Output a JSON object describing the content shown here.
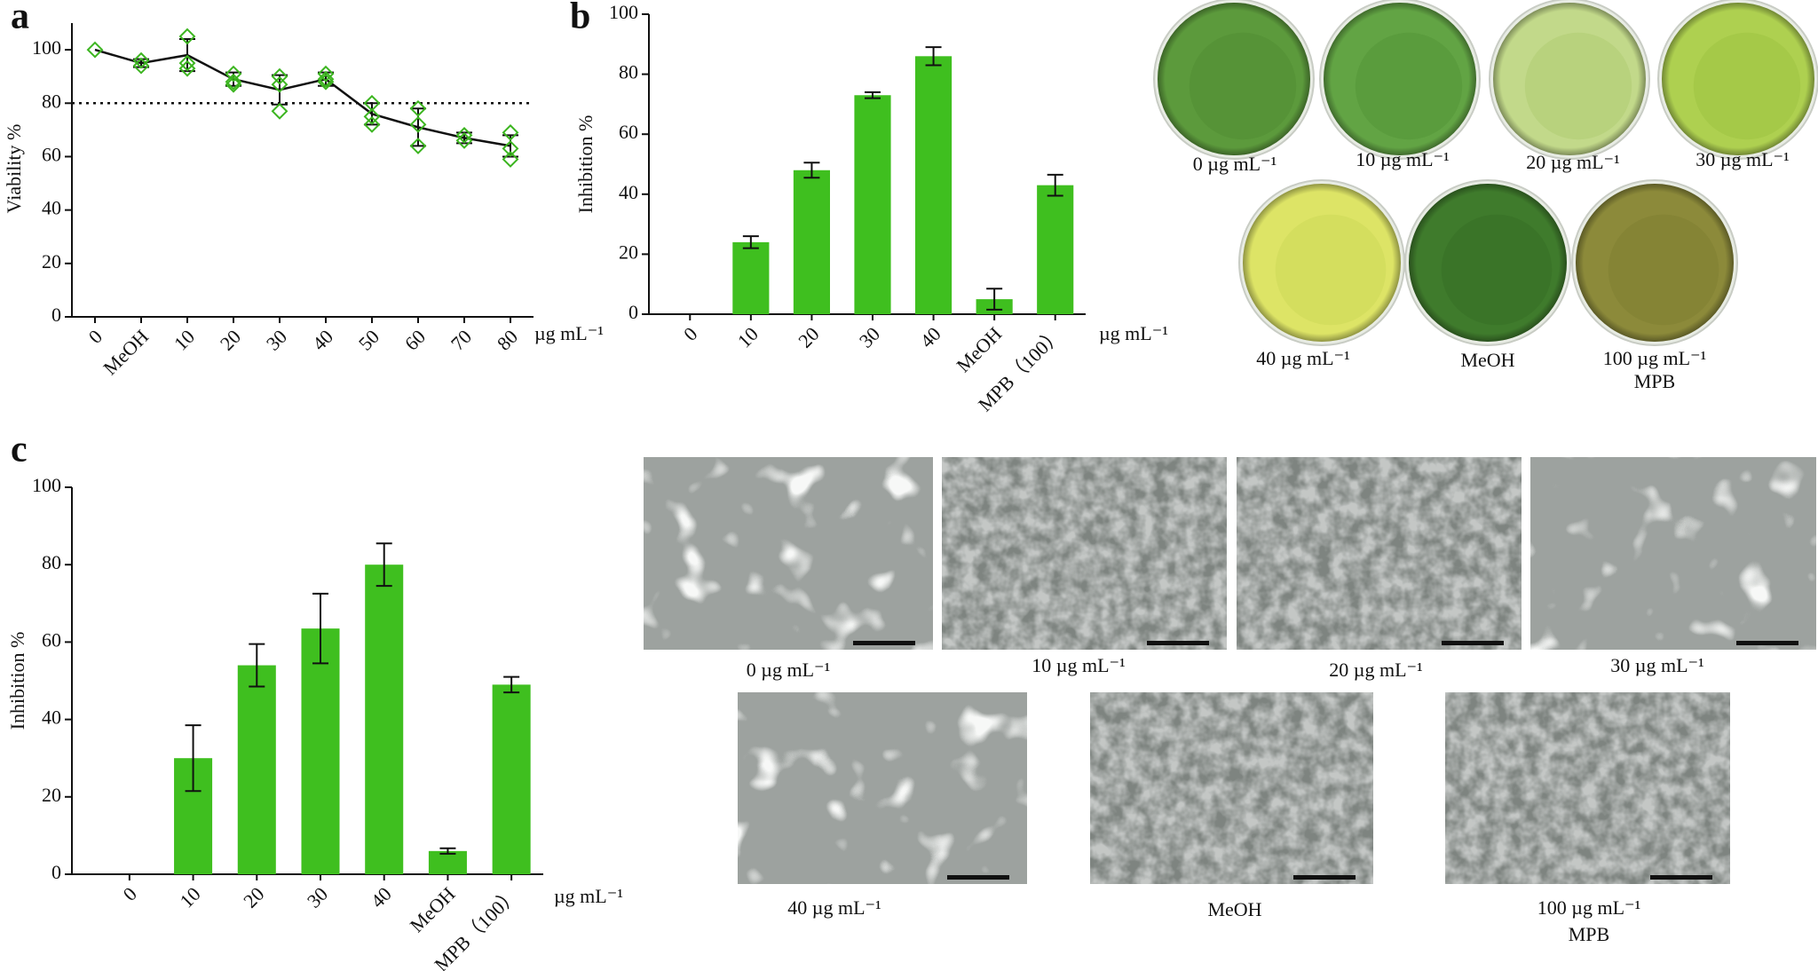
{
  "chart_data": [
    {
      "type": "line",
      "panel_label": "a",
      "y_label": "Viability %",
      "x_unit_label": "µg mL⁻¹",
      "categories": [
        "0",
        "MeOH",
        "10",
        "20",
        "30",
        "40",
        "50",
        "60",
        "70",
        "80"
      ],
      "series": [
        {
          "color": "#111111",
          "values": [
            100,
            95,
            98,
            89,
            85,
            89,
            76,
            71,
            67,
            64
          ],
          "errors": [
            0,
            1.5,
            6,
            2.5,
            5.5,
            2.5,
            4,
            7,
            2,
            4
          ]
        },
        {
          "color": "#3cb520",
          "marker": "diamond",
          "values": [
            100,
            96,
            105,
            91,
            90,
            91,
            80,
            78,
            68,
            69
          ]
        },
        {
          "color": "#3cb520",
          "marker": "diamond",
          "values": [
            null,
            94,
            95,
            88,
            87,
            89,
            75,
            72,
            66,
            63
          ]
        },
        {
          "color": "#3cb520",
          "marker": "diamond",
          "values": [
            null,
            null,
            93,
            87,
            77,
            88,
            72,
            64,
            null,
            59
          ]
        }
      ],
      "reference_line": 80,
      "ylim": [
        0,
        110
      ],
      "yticks": [
        0,
        20,
        40,
        60,
        80,
        100
      ]
    },
    {
      "type": "bar",
      "panel_label": "b",
      "y_label": "Inhibition %",
      "x_unit_label": "µg mL⁻¹",
      "categories": [
        "0",
        "10",
        "20",
        "30",
        "40",
        "MeOH",
        "MPB（100）"
      ],
      "values": [
        0,
        24,
        48,
        73,
        86,
        5,
        43
      ],
      "errors": [
        0,
        2,
        2.5,
        1,
        3,
        3.5,
        3.5
      ],
      "color": "#3fbf1f",
      "ylim": [
        0,
        100
      ],
      "yticks": [
        0,
        20,
        40,
        60,
        80,
        100
      ]
    },
    {
      "type": "bar",
      "panel_label": "c",
      "y_label": "Inhibition %",
      "x_unit_label": "µg mL⁻¹",
      "categories": [
        "0",
        "10",
        "20",
        "30",
        "40",
        "MeOH",
        "MPB（100）"
      ],
      "values": [
        0,
        30,
        54,
        63.5,
        80,
        6,
        49
      ],
      "errors": [
        0,
        8.5,
        5.5,
        9,
        5.5,
        0.7,
        2
      ],
      "color": "#3fbf1f",
      "ylim": [
        0,
        100
      ],
      "yticks": [
        0,
        20,
        40,
        60,
        80,
        100
      ]
    }
  ],
  "plate_photos": {
    "captions": [
      "0 µg mL⁻¹",
      "10 µg mL⁻¹",
      "20 µg mL⁻¹",
      "30 µg mL⁻¹",
      "40 µg mL⁻¹",
      "MeOH",
      "100 µg mL⁻¹"
    ],
    "last_caption_line2": "MPB"
  },
  "sem_images": {
    "captions": [
      "0 µg mL⁻¹",
      "10 µg mL⁻¹",
      "20 µg mL⁻¹",
      "30 µg mL⁻¹",
      "40 µg mL⁻¹",
      "MeOH",
      "100 µg mL⁻¹"
    ],
    "last_caption_line2": "MPB"
  }
}
